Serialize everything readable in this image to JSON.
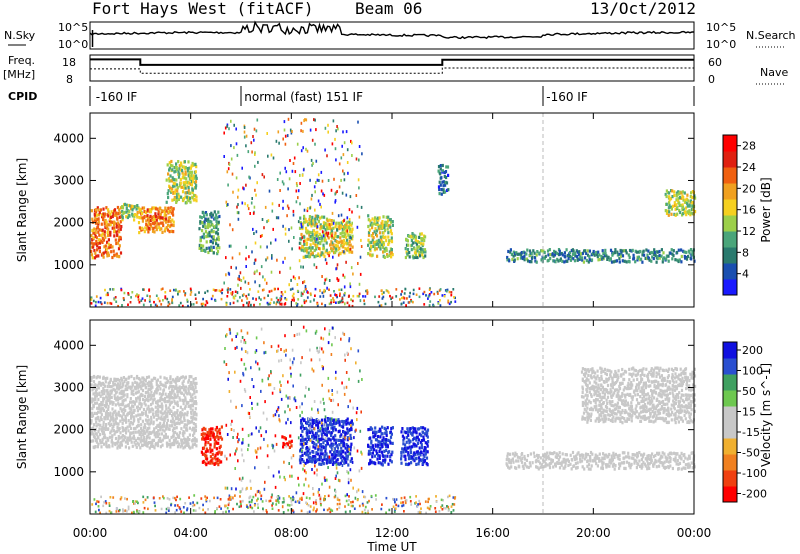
{
  "header": {
    "station": "Fort Hays West (fitACF)",
    "beam": "Beam 06",
    "date": "13/Oct/2012"
  },
  "left_labels": {
    "nsky": "N.Sky",
    "freq_line1": "Freq.",
    "freq_line2": "[MHz]",
    "cpid": "CPID"
  },
  "right_labels": {
    "nsearch": "N.Search",
    "nave": "Nave"
  },
  "noise_axis": {
    "left_top": "10^5",
    "left_bottom": "10^0",
    "right_top": "10^5",
    "right_bottom": "10^0"
  },
  "freq_axis": {
    "left_top": "18",
    "left_bottom": "8",
    "right_top": "60",
    "right_bottom": "0"
  },
  "cpid_labels": [
    {
      "text": "-160 IF",
      "hour": 0.15
    },
    {
      "text": "normal (fast) 151 IF",
      "hour": 6.05
    },
    {
      "text": "-160 IF",
      "hour": 18.05
    }
  ],
  "cpid_dividers": [
    6.0,
    18.0
  ],
  "freq_steps": {
    "freq": [
      [
        0,
        16.3
      ],
      [
        2.0,
        16.3
      ],
      [
        2.0,
        14.2
      ],
      [
        14.0,
        14.2
      ],
      [
        14.0,
        16.2
      ],
      [
        24,
        16.2
      ]
    ],
    "nave": [
      [
        0,
        28
      ],
      [
        2.0,
        28
      ],
      [
        2.0,
        18
      ],
      [
        14.0,
        18
      ],
      [
        14.0,
        30
      ],
      [
        24,
        30
      ]
    ]
  },
  "xaxis": {
    "ticks": [
      "00:00",
      "04:00",
      "08:00",
      "12:00",
      "16:00",
      "20:00",
      "00:00"
    ],
    "label": "Time UT"
  },
  "yaxis": {
    "ticks": [
      "1000",
      "2000",
      "3000",
      "4000"
    ],
    "label": "Slant Range [km]"
  },
  "power_colorbar": {
    "label": "Power [dB]",
    "ticks": [
      "4",
      "8",
      "12",
      "16",
      "20",
      "24",
      "28"
    ],
    "colors": [
      "#1a1aff",
      "#1a4fb0",
      "#2a7a6e",
      "#4aa57a",
      "#9ccf4a",
      "#f5d020",
      "#f0a020",
      "#f06010",
      "#e02010",
      "#ff0000"
    ]
  },
  "velocity_colorbar": {
    "label": "Velocity [m s^-1]",
    "ticks": [
      "200",
      "100",
      "50",
      "15",
      "-15",
      "-50",
      "-100",
      "-200"
    ],
    "colors": [
      "#1010e0",
      "#2a4fd0",
      "#3fa060",
      "#6ec850",
      "#c8c8c8",
      "#c8c8c8",
      "#f0b030",
      "#f08020",
      "#f04010",
      "#ff0000"
    ]
  },
  "chart_data": {
    "type": "heatmap",
    "title": "Fort Hays West (fitACF)",
    "x_unit": "hour UT",
    "xlim": [
      0,
      24
    ],
    "ylim": [
      0,
      4600
    ],
    "panels": [
      {
        "name": "Power",
        "colorbar_range": [
          0,
          30
        ],
        "bands": [
          {
            "t": [
              0,
              1.2
            ],
            "r": [
              1200,
              2400
            ],
            "level": 22
          },
          {
            "t": [
              1.2,
              2.0
            ],
            "r": [
              2100,
              2500
            ],
            "level": 14
          },
          {
            "t": [
              1.9,
              3.3
            ],
            "r": [
              1800,
              2400
            ],
            "level": 20
          },
          {
            "t": [
              3.0,
              4.2
            ],
            "r": [
              2500,
              3500
            ],
            "level": 14
          },
          {
            "t": [
              4.3,
              5.1
            ],
            "r": [
              1300,
              2300
            ],
            "level": 10
          },
          {
            "t": [
              8.3,
              9.4
            ],
            "r": [
              1200,
              2200
            ],
            "level": 14
          },
          {
            "t": [
              9.4,
              10.4
            ],
            "r": [
              1300,
              2100
            ],
            "level": 16
          },
          {
            "t": [
              11.0,
              12.0
            ],
            "r": [
              1200,
              2200
            ],
            "level": 14
          },
          {
            "t": [
              12.5,
              13.3
            ],
            "r": [
              1200,
              1800
            ],
            "level": 12
          },
          {
            "t": [
              13.8,
              14.2
            ],
            "r": [
              2700,
              3400
            ],
            "level": 6
          },
          {
            "t": [
              16.5,
              24.0
            ],
            "r": [
              1100,
              1400
            ],
            "level": 8
          },
          {
            "t": [
              22.8,
              24.0
            ],
            "r": [
              2200,
              2800
            ],
            "level": 14
          }
        ]
      },
      {
        "name": "Velocity",
        "colorbar_range": [
          -250,
          250
        ],
        "bands": [
          {
            "t": [
              0,
              4.2
            ],
            "r": [
              1600,
              3300
            ],
            "level": 0
          },
          {
            "t": [
              4.4,
              5.2
            ],
            "r": [
              1200,
              2100
            ],
            "level": -200
          },
          {
            "t": [
              7.6,
              8.0
            ],
            "r": [
              1600,
              1900
            ],
            "level": -200
          },
          {
            "t": [
              8.3,
              10.4
            ],
            "r": [
              1200,
              2300
            ],
            "level": 200
          },
          {
            "t": [
              11.0,
              12.0
            ],
            "r": [
              1200,
              2100
            ],
            "level": 200
          },
          {
            "t": [
              12.3,
              13.4
            ],
            "r": [
              1200,
              2100
            ],
            "level": 200
          },
          {
            "t": [
              16.5,
              24.0
            ],
            "r": [
              1100,
              1500
            ],
            "level": 0
          },
          {
            "t": [
              19.5,
              24.0
            ],
            "r": [
              2200,
              3500
            ],
            "level": 0
          }
        ]
      }
    ]
  }
}
